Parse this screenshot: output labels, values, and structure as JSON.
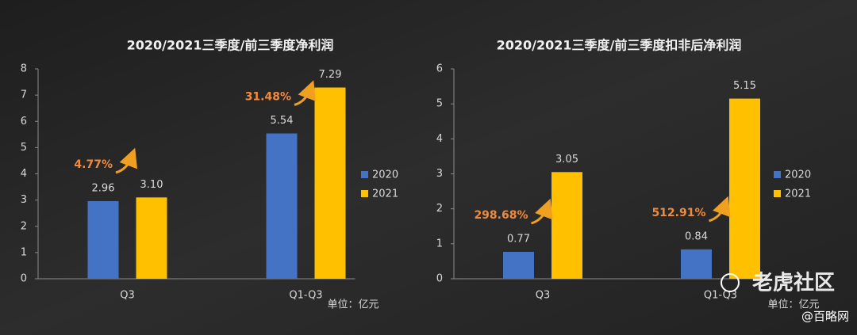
{
  "chart_data": [
    {
      "type": "bar",
      "title": "2020/2021三季度/前三季度净利润",
      "categories": [
        "Q3",
        "Q1-Q3"
      ],
      "series": [
        {
          "name": "2020",
          "color": "#4472c4",
          "values": [
            2.96,
            5.54
          ],
          "value_labels": [
            "2.96",
            "5.54"
          ]
        },
        {
          "name": "2021",
          "color": "#ffc000",
          "values": [
            3.1,
            7.29
          ],
          "value_labels": [
            "3.10",
            "7.29"
          ]
        }
      ],
      "annotations": [
        "4.77%",
        "31.48%"
      ],
      "ylim": [
        0,
        8
      ],
      "yticks": [
        0,
        1,
        2,
        3,
        4,
        5,
        6,
        7,
        8
      ],
      "legend": "right",
      "unit": "单位：亿元"
    },
    {
      "type": "bar",
      "title": "2020/2021三季度/前三季度扣非后净利润",
      "categories": [
        "Q3",
        "Q1-Q3"
      ],
      "series": [
        {
          "name": "2020",
          "color": "#4472c4",
          "values": [
            0.77,
            0.84
          ],
          "value_labels": [
            "0.77",
            "0.84"
          ]
        },
        {
          "name": "2021",
          "color": "#ffc000",
          "values": [
            3.05,
            5.15
          ],
          "value_labels": [
            "3.05",
            "5.15"
          ]
        }
      ],
      "annotations": [
        "298.68%",
        "512.91%"
      ],
      "ylim": [
        0,
        6
      ],
      "yticks": [
        0,
        1,
        2,
        3,
        4,
        5,
        6
      ],
      "legend": "right",
      "unit": "单位：亿元"
    }
  ],
  "watermark": [
    "老虎社区",
    "@百略网"
  ]
}
